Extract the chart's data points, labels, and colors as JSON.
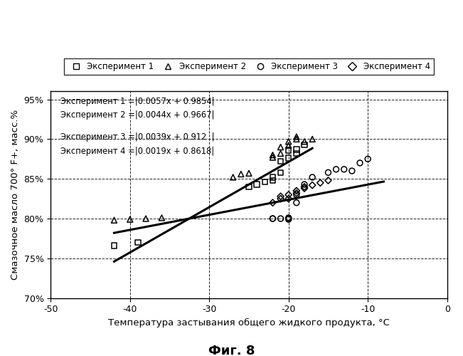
{
  "title": "Фиг. 8",
  "xlabel": "Температура застывания общего жидкого продукта, °C",
  "ylabel": "Смазочное масло 700° F+, масс.%",
  "xlim": [
    -50,
    0
  ],
  "ylim": [
    0.7,
    0.96
  ],
  "xticks": [
    -50,
    -40,
    -30,
    -20,
    -10,
    0
  ],
  "yticks": [
    0.7,
    0.75,
    0.8,
    0.85,
    0.9,
    0.95
  ],
  "ytick_labels": [
    "70%",
    "75%",
    "80%",
    "85%",
    "90%",
    "95%"
  ],
  "exp1_x": [
    -42,
    -39,
    -25,
    -24,
    -23,
    -22,
    -22,
    -21,
    -21,
    -20,
    -20,
    -19,
    -19,
    -18
  ],
  "exp1_y": [
    0.766,
    0.77,
    0.84,
    0.843,
    0.846,
    0.848,
    0.852,
    0.858,
    0.872,
    0.876,
    0.886,
    0.882,
    0.887,
    0.893
  ],
  "exp2_x": [
    -42,
    -40,
    -38,
    -36,
    -27,
    -26,
    -25,
    -22,
    -22,
    -21,
    -21,
    -20,
    -20,
    -19,
    -19,
    -18,
    -17
  ],
  "exp2_y": [
    0.798,
    0.799,
    0.8,
    0.801,
    0.852,
    0.856,
    0.857,
    0.877,
    0.88,
    0.882,
    0.89,
    0.892,
    0.897,
    0.9,
    0.903,
    0.897,
    0.9
  ],
  "exp3_x": [
    -22,
    -22,
    -21,
    -20,
    -20,
    -20,
    -19,
    -19,
    -18,
    -17,
    -15,
    -14,
    -13,
    -12,
    -11,
    -10
  ],
  "exp3_y": [
    0.8,
    0.8,
    0.8,
    0.799,
    0.801,
    0.8,
    0.82,
    0.83,
    0.843,
    0.852,
    0.858,
    0.862,
    0.862,
    0.86,
    0.87,
    0.875
  ],
  "exp4_x": [
    -22,
    -21,
    -21,
    -20,
    -20,
    -19,
    -19,
    -18,
    -18,
    -17,
    -16,
    -15
  ],
  "exp4_y": [
    0.82,
    0.825,
    0.828,
    0.825,
    0.83,
    0.832,
    0.835,
    0.838,
    0.84,
    0.842,
    0.845,
    0.848
  ],
  "line12_slope": 0.0057,
  "line12_intercept": 0.9854,
  "line12_xrange": [
    -42,
    -17
  ],
  "line34_slope": 0.0019,
  "line34_intercept": 0.8618,
  "line34_xrange": [
    -42,
    -8
  ],
  "legend_labels": [
    "Эксперимент 1",
    "Эксперимент 2",
    "Эксперимент 3",
    "Эксперимент 4"
  ],
  "ann1": "Эксперимент 1 =§0.0057x + 0.9854§",
  "ann2": "Эксперимент 2 =§0.0044x + 0.9667§",
  "ann3": "Эксперимент 3 =§0.0039x + 0.912  ",
  "ann4": "Эксперимент 4 =§0.0019x + 0.8618§",
  "background_color": "#ffffff"
}
